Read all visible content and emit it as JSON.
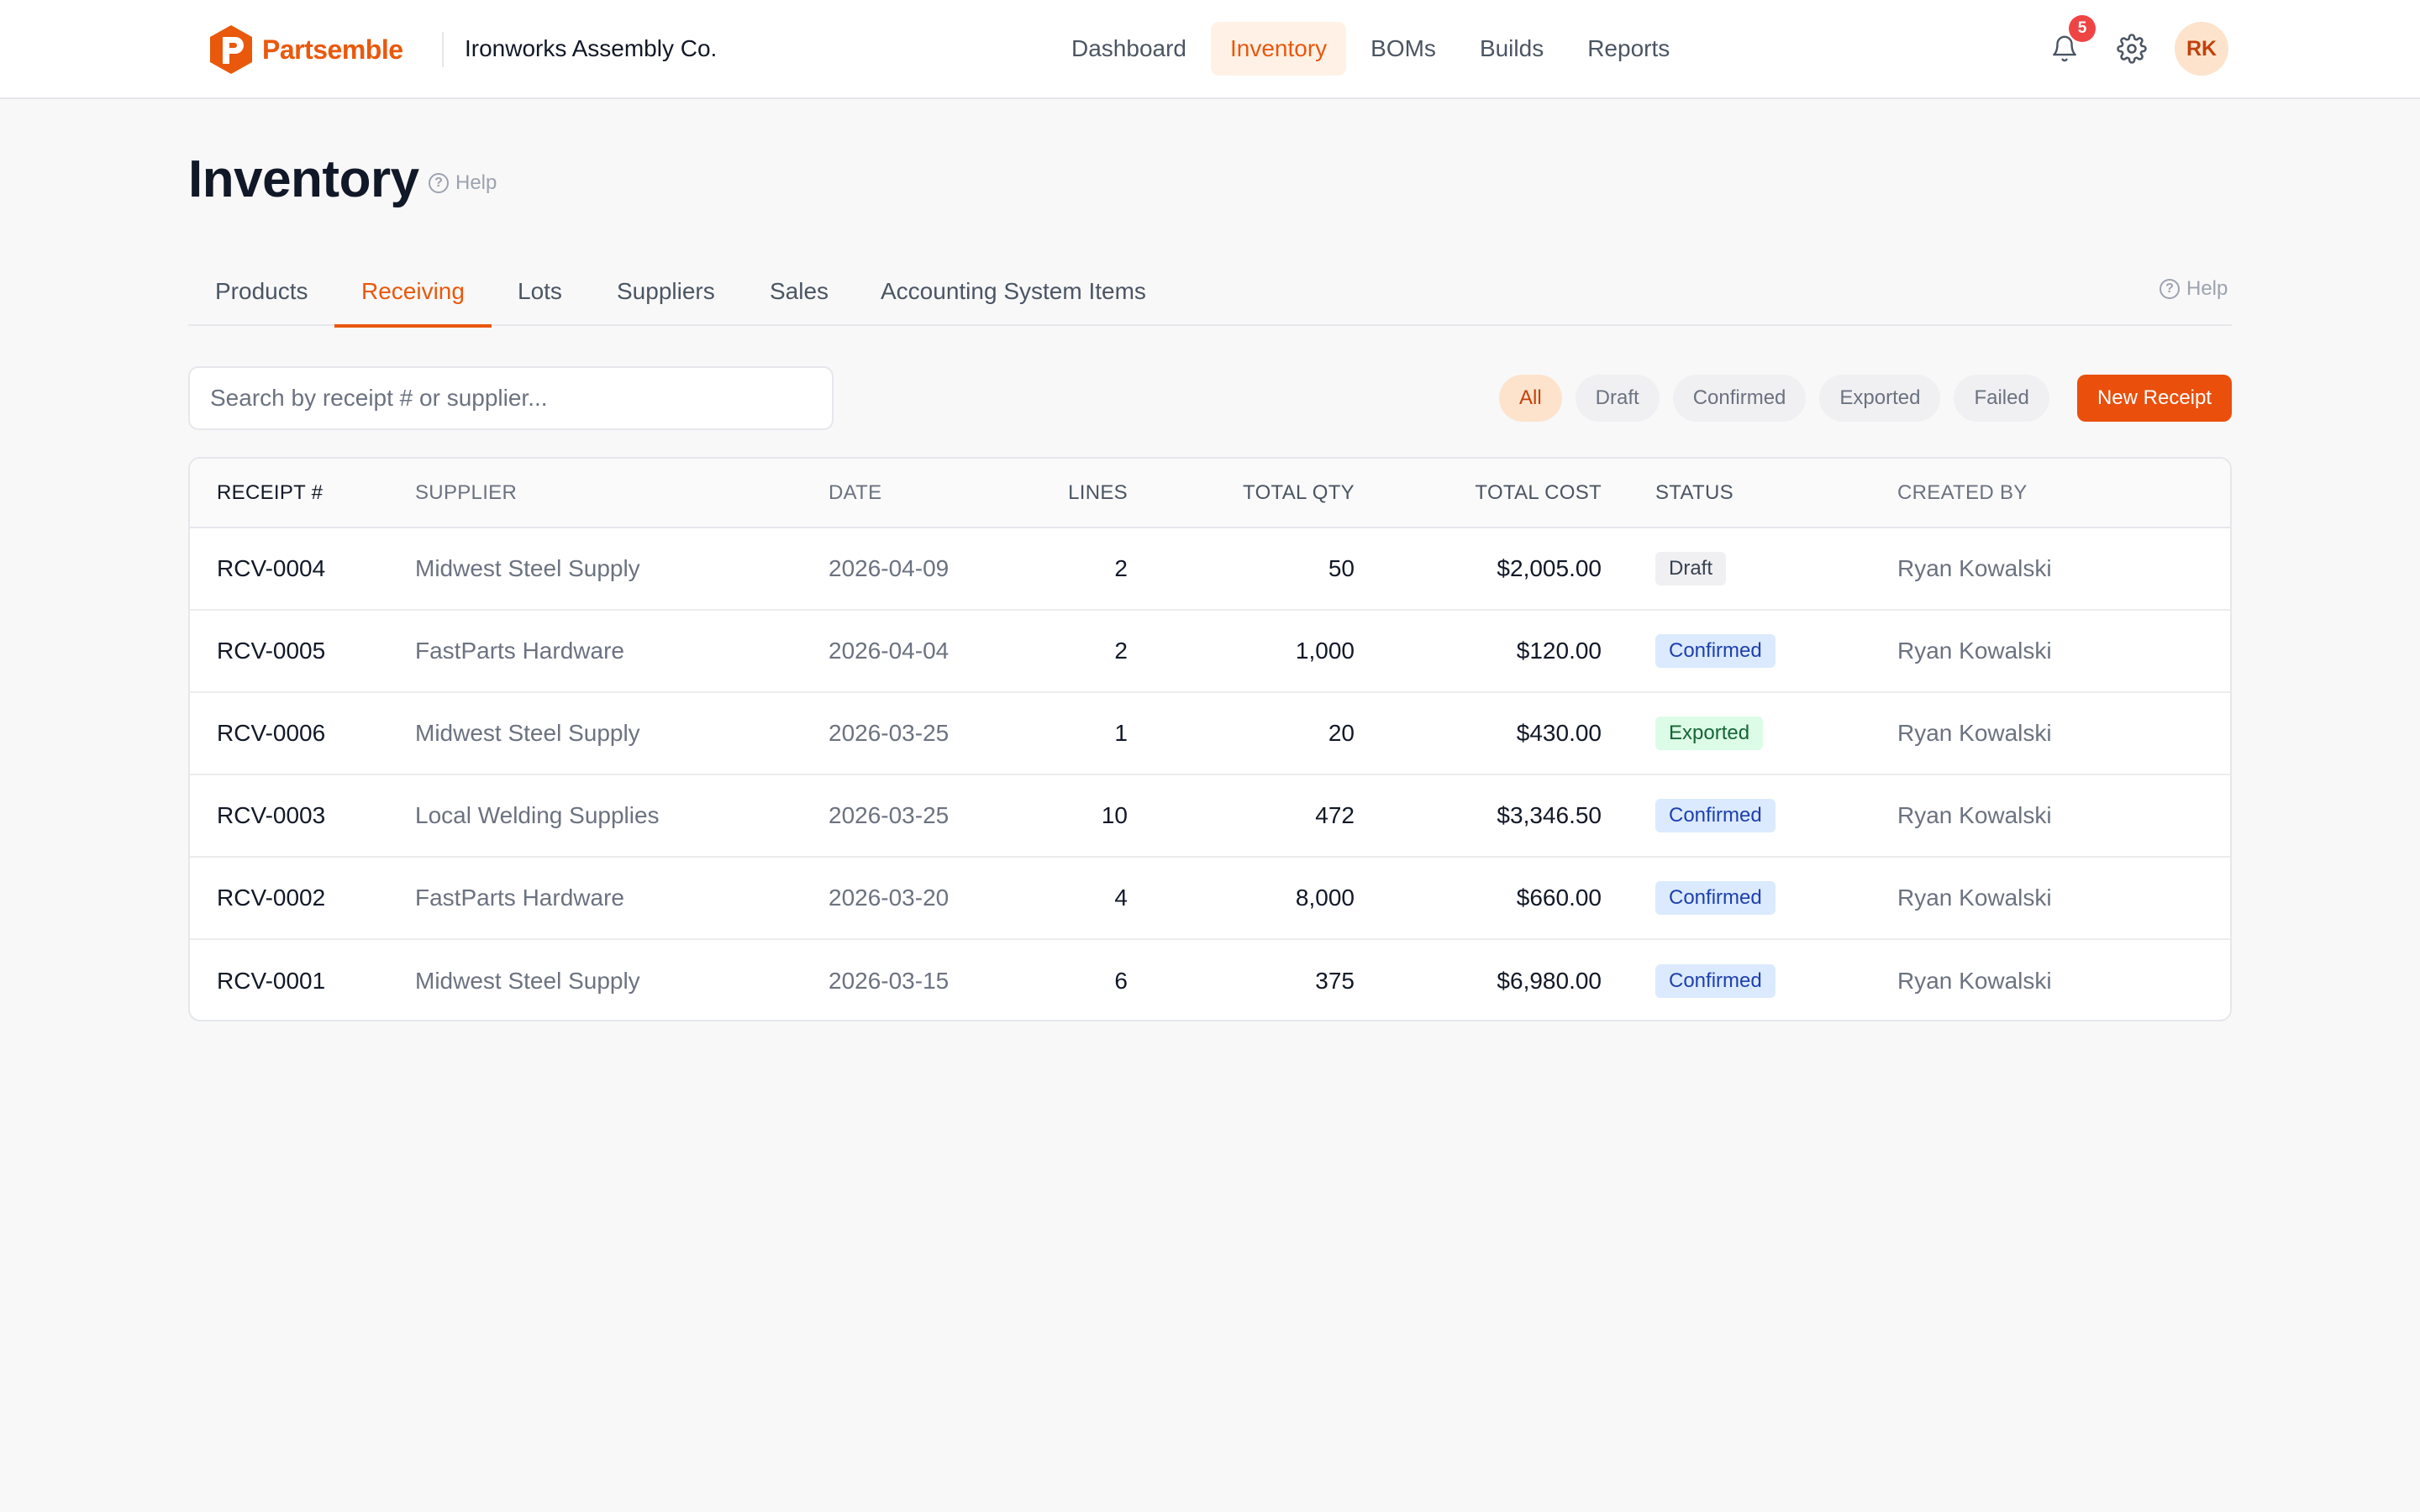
{
  "app": {
    "brand": "Partsemble",
    "company": "Ironworks Assembly Co.",
    "accent": "#ea580c",
    "nav": [
      {
        "label": "Dashboard",
        "active": false
      },
      {
        "label": "Inventory",
        "active": true
      },
      {
        "label": "BOMs",
        "active": false
      },
      {
        "label": "Builds",
        "active": false
      },
      {
        "label": "Reports",
        "active": false
      }
    ],
    "notifications_count": "5",
    "user_initials": "RK"
  },
  "page": {
    "title": "Inventory",
    "help_label": "Help",
    "help_label_right": "Help",
    "tabs": [
      {
        "label": "Products",
        "active": false
      },
      {
        "label": "Receiving",
        "active": true
      },
      {
        "label": "Lots",
        "active": false
      },
      {
        "label": "Suppliers",
        "active": false
      },
      {
        "label": "Sales",
        "active": false
      },
      {
        "label": "Accounting System Items",
        "active": false
      }
    ]
  },
  "toolbar": {
    "search_placeholder": "Search by receipt # or supplier...",
    "search_value": "",
    "filters": [
      {
        "label": "All",
        "active": true
      },
      {
        "label": "Draft",
        "active": false
      },
      {
        "label": "Confirmed",
        "active": false
      },
      {
        "label": "Exported",
        "active": false
      },
      {
        "label": "Failed",
        "active": false
      }
    ],
    "new_button": "New Receipt"
  },
  "table": {
    "columns": [
      "RECEIPT #",
      "SUPPLIER",
      "DATE",
      "LINES",
      "TOTAL QTY",
      "TOTAL COST",
      "STATUS",
      "CREATED BY"
    ],
    "rows": [
      {
        "receipt": "RCV-0004",
        "supplier": "Midwest Steel Supply",
        "date": "2026-04-09",
        "lines": "2",
        "qty": "50",
        "cost": "$2,005.00",
        "status": "Draft",
        "created_by": "Ryan Kowalski"
      },
      {
        "receipt": "RCV-0005",
        "supplier": "FastParts Hardware",
        "date": "2026-04-04",
        "lines": "2",
        "qty": "1,000",
        "cost": "$120.00",
        "status": "Confirmed",
        "created_by": "Ryan Kowalski"
      },
      {
        "receipt": "RCV-0006",
        "supplier": "Midwest Steel Supply",
        "date": "2026-03-25",
        "lines": "1",
        "qty": "20",
        "cost": "$430.00",
        "status": "Exported",
        "created_by": "Ryan Kowalski"
      },
      {
        "receipt": "RCV-0003",
        "supplier": "Local Welding Supplies",
        "date": "2026-03-25",
        "lines": "10",
        "qty": "472",
        "cost": "$3,346.50",
        "status": "Confirmed",
        "created_by": "Ryan Kowalski"
      },
      {
        "receipt": "RCV-0002",
        "supplier": "FastParts Hardware",
        "date": "2026-03-20",
        "lines": "4",
        "qty": "8,000",
        "cost": "$660.00",
        "status": "Confirmed",
        "created_by": "Ryan Kowalski"
      },
      {
        "receipt": "RCV-0001",
        "supplier": "Midwest Steel Supply",
        "date": "2026-03-15",
        "lines": "6",
        "qty": "375",
        "cost": "$6,980.00",
        "status": "Confirmed",
        "created_by": "Ryan Kowalski"
      }
    ]
  }
}
